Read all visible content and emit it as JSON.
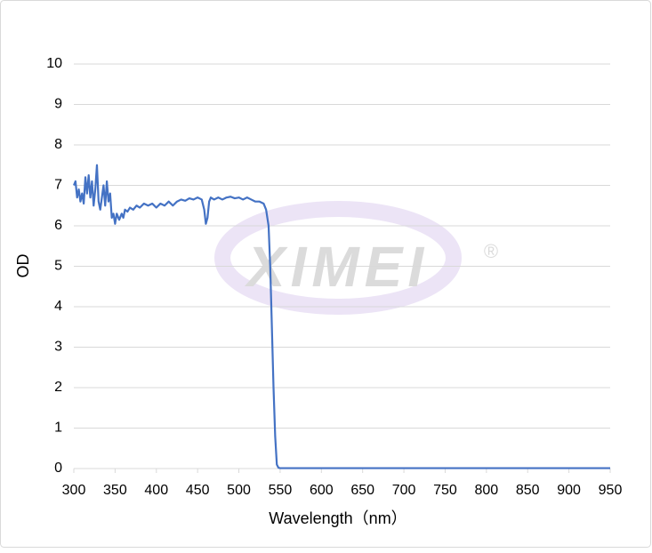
{
  "chart_data": {
    "type": "line",
    "watermark": "XIMEI",
    "watermark_symbol": "®",
    "x_label": "Wavelength（nm）",
    "y_label": "OD",
    "xlim": [
      300,
      950
    ],
    "xticks": [
      300,
      350,
      400,
      450,
      500,
      550,
      600,
      650,
      700,
      750,
      800,
      850,
      900,
      950
    ],
    "ylim": [
      0,
      10
    ],
    "yticks": [
      0,
      1,
      2,
      3,
      4,
      5,
      6,
      7,
      8,
      9,
      10
    ],
    "grid": true,
    "series": [
      {
        "name": "OD",
        "color": "#4472c4",
        "x": [
          300,
          302,
          304,
          306,
          308,
          310,
          312,
          314,
          316,
          318,
          320,
          322,
          324,
          326,
          328,
          330,
          332,
          334,
          336,
          338,
          340,
          342,
          344,
          346,
          348,
          350,
          352,
          355,
          358,
          360,
          362,
          365,
          368,
          372,
          376,
          380,
          385,
          390,
          395,
          400,
          405,
          410,
          415,
          420,
          425,
          430,
          435,
          440,
          445,
          450,
          455,
          458,
          460,
          462,
          464,
          466,
          470,
          475,
          480,
          485,
          490,
          495,
          500,
          505,
          510,
          515,
          520,
          525,
          530,
          533,
          536,
          538,
          540,
          542,
          544,
          546,
          548,
          550,
          600,
          700,
          800,
          900,
          950
        ],
        "values": [
          7.0,
          7.1,
          6.7,
          6.9,
          6.6,
          6.8,
          6.55,
          7.2,
          6.8,
          7.25,
          6.7,
          7.1,
          6.5,
          6.9,
          7.5,
          6.6,
          6.4,
          6.7,
          7.0,
          6.5,
          7.1,
          6.6,
          6.8,
          6.2,
          6.3,
          6.05,
          6.3,
          6.15,
          6.3,
          6.2,
          6.4,
          6.35,
          6.45,
          6.4,
          6.5,
          6.45,
          6.55,
          6.5,
          6.55,
          6.45,
          6.55,
          6.5,
          6.6,
          6.5,
          6.6,
          6.65,
          6.62,
          6.68,
          6.65,
          6.7,
          6.65,
          6.4,
          6.05,
          6.2,
          6.6,
          6.7,
          6.65,
          6.7,
          6.65,
          6.7,
          6.72,
          6.68,
          6.7,
          6.65,
          6.7,
          6.65,
          6.6,
          6.6,
          6.55,
          6.4,
          6.0,
          5.0,
          3.5,
          2.0,
          0.8,
          0.1,
          0.02,
          0.01,
          0.01,
          0.01,
          0.01,
          0.01,
          0.01
        ]
      }
    ]
  }
}
